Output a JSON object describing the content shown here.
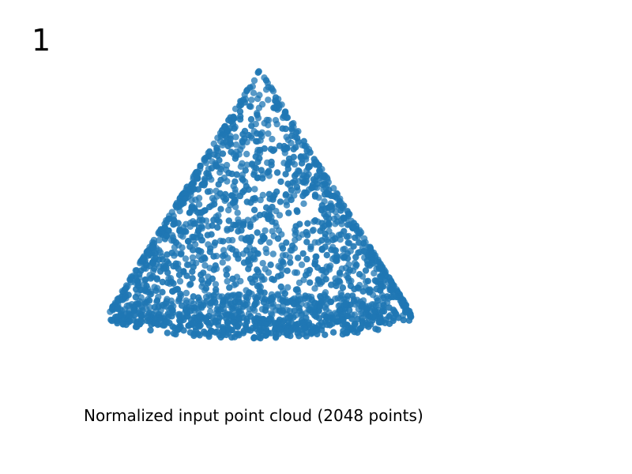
{
  "frame_label": "1",
  "caption": "Normalized input point cloud (2048 points)",
  "chart_data": {
    "type": "scatter",
    "title": "",
    "caption": "Normalized input point cloud (2048 points)",
    "point_count": 2048,
    "shape": "cone",
    "apex": {
      "x": 0.0,
      "y": 0.0,
      "z": 1.0
    },
    "base_center": {
      "x": 0.0,
      "y": 0.0,
      "z": -1.0
    },
    "base_radius": 1.0,
    "marker_color": "#1f77b4",
    "axes_visible": false,
    "grid": false
  }
}
